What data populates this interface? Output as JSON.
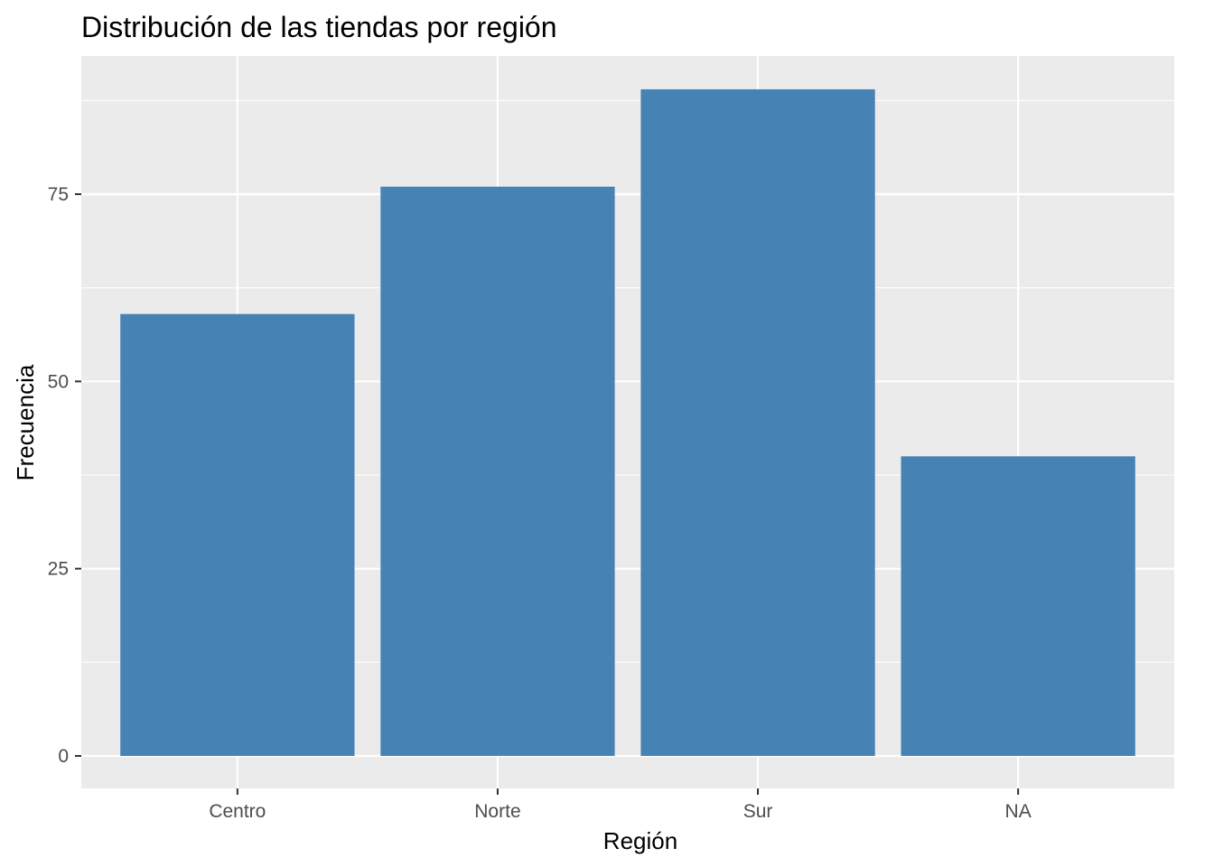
{
  "chart_data": {
    "type": "bar",
    "title": "Distribución de las tiendas por región",
    "xlabel": "Región",
    "ylabel": "Frecuencia",
    "categories": [
      "Centro",
      "Norte",
      "Sur",
      "NA"
    ],
    "values": [
      59,
      76,
      89,
      40
    ],
    "ylim": [
      0,
      92
    ],
    "yticks": [
      0,
      25,
      50,
      75
    ],
    "ytick_labels": [
      "0",
      "25",
      "50",
      "75"
    ],
    "grid": true,
    "bar_color": "#4682B4",
    "panel_background": "#EBEBEB",
    "grid_color": "#FFFFFF"
  }
}
